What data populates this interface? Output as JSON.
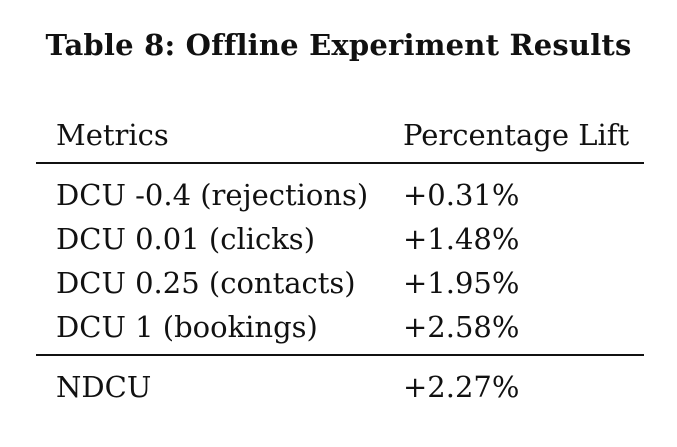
{
  "table": {
    "caption": "Table 8: Offline Experiment Results",
    "headers": {
      "metric": "Metrics",
      "lift": "Percentage Lift"
    },
    "rows": [
      {
        "metric": "DCU -0.4 (rejections)",
        "lift": "+0.31%"
      },
      {
        "metric": "DCU 0.01 (clicks)",
        "lift": "+1.48%"
      },
      {
        "metric": "DCU 0.25 (contacts)",
        "lift": "+1.95%"
      },
      {
        "metric": "DCU 1 (bookings)",
        "lift": "+2.58%"
      }
    ],
    "summary": {
      "metric": "NDCU",
      "lift": "+2.27%"
    }
  }
}
